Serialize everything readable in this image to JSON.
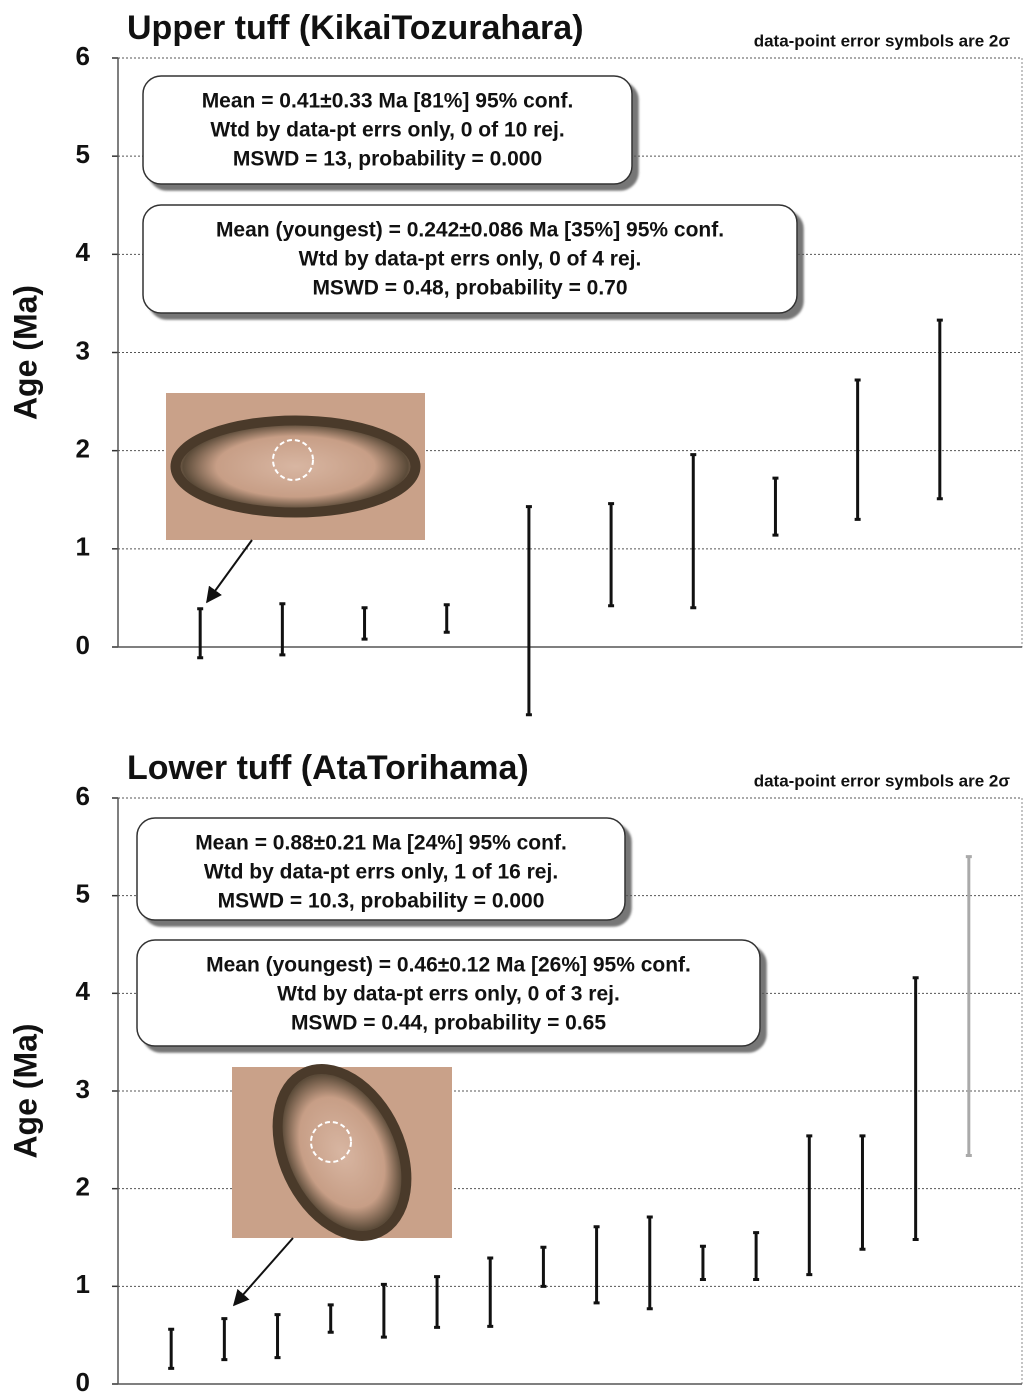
{
  "chart_data": [
    {
      "type": "errorbar",
      "title": "Upper tuff (KikaiTozurahara)",
      "note": "data-point error symbols are 2σ",
      "y_label": "Age (Ma)",
      "ylim": [
        0,
        6
      ],
      "yticks": [
        0,
        1,
        2,
        3,
        4,
        5,
        6
      ],
      "grid": true,
      "values": [
        0.14,
        0.18,
        0.24,
        0.29,
        0.37,
        0.94,
        1.18,
        1.43,
        2.01,
        2.42
      ],
      "errors": [
        0.25,
        0.26,
        0.16,
        0.14,
        1.06,
        0.52,
        0.78,
        0.29,
        0.71,
        0.91
      ],
      "colors": [
        "#111111",
        "#111111",
        "#111111",
        "#111111",
        "#111111",
        "#111111",
        "#111111",
        "#111111",
        "#111111",
        "#111111"
      ],
      "annotations": [
        [
          "Mean = 0.41±0.33 Ma [81%]  95% conf.",
          "Wtd by data-pt errs only, 0 of 10 rej.",
          "MSWD = 13, probability = 0.000"
        ],
        [
          "Mean (youngest) = 0.242±0.086 Ma [35%]  95% conf.",
          "Wtd by data-pt errs only, 0 of 4 rej.",
          "MSWD = 0.48, probability = 0.70"
        ]
      ]
    },
    {
      "type": "errorbar",
      "title": "Lower tuff (AtaTorihama)",
      "note": "data-point error symbols are 2σ",
      "y_label": "Age (Ma)",
      "ylim": [
        0,
        6
      ],
      "yticks": [
        0,
        1,
        2,
        3,
        4,
        5,
        6
      ],
      "grid": true,
      "values": [
        0.36,
        0.46,
        0.49,
        0.67,
        0.75,
        0.84,
        0.94,
        1.2,
        1.22,
        1.24,
        1.24,
        1.31,
        1.83,
        1.96,
        2.82,
        3.87
      ],
      "errors": [
        0.2,
        0.21,
        0.22,
        0.14,
        0.27,
        0.26,
        0.35,
        0.2,
        0.39,
        0.47,
        0.17,
        0.24,
        0.71,
        0.58,
        1.34,
        1.53
      ],
      "colors": [
        "#111111",
        "#111111",
        "#111111",
        "#111111",
        "#111111",
        "#111111",
        "#111111",
        "#111111",
        "#111111",
        "#111111",
        "#111111",
        "#111111",
        "#111111",
        "#111111",
        "#111111",
        "#aaaaaa"
      ],
      "annotations": [
        [
          "Mean = 0.88±0.21 Ma [24%]  95% conf.",
          "Wtd by data-pt errs only, 1 of 16 rej.",
          "MSWD = 10.3, probability = 0.000"
        ],
        [
          "Mean (youngest) = 0.46±0.12 Ma [26%]  95% conf.",
          "Wtd by data-pt errs only, 0 of 3 rej.",
          "MSWD = 0.44, probability = 0.65"
        ]
      ]
    }
  ]
}
